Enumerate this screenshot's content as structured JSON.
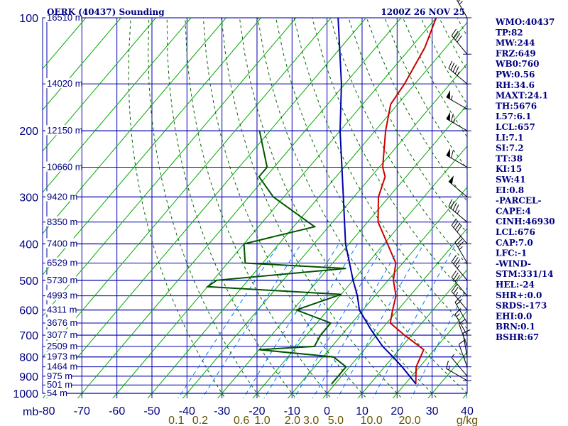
{
  "header": {
    "station": "OERK (40437) Sounding",
    "time": "1200Z 26 NOV 25"
  },
  "axes": {
    "pressure_unit": "mb",
    "mixing_ratio_unit": "g/kg",
    "pressure_levels": [
      100,
      200,
      300,
      400,
      500,
      600,
      700,
      800,
      900,
      1000
    ],
    "pressure_labels": [
      "100",
      "200",
      "300",
      "400",
      "500",
      "600",
      "700",
      "800",
      "900",
      "1000"
    ],
    "temp_ticks": [
      -80,
      -70,
      -60,
      -50,
      -40,
      -30,
      -20,
      -10,
      0,
      10,
      20,
      30,
      40
    ],
    "temp_labels": [
      "-80",
      "-70",
      "-60",
      "-50",
      "-40",
      "-30",
      "-20",
      "-10",
      "0",
      "10",
      "20",
      "30",
      "40"
    ],
    "mixing_ratio_ticks": [
      0.1,
      0.2,
      0.6,
      1.0,
      2.0,
      3.0,
      5.0,
      10.0,
      20.0
    ],
    "mixing_ratio_labels": [
      "0.1",
      "0.2",
      "0.6",
      "1.0",
      "2.0",
      "3.0",
      "5.0",
      "10.0",
      "20.0"
    ],
    "heights": [
      {
        "p": 100,
        "label": "16510 m"
      },
      {
        "p": 150,
        "label": "14020 m"
      },
      {
        "p": 200,
        "label": "12150 m"
      },
      {
        "p": 250,
        "label": "10660 m"
      },
      {
        "p": 300,
        "label": "9420 m"
      },
      {
        "p": 350,
        "label": "8350 m"
      },
      {
        "p": 400,
        "label": "7400 m"
      },
      {
        "p": 450,
        "label": "6529 m"
      },
      {
        "p": 500,
        "label": "5730 m"
      },
      {
        "p": 550,
        "label": "4993 m"
      },
      {
        "p": 600,
        "label": "4311 m"
      },
      {
        "p": 650,
        "label": "3676 m"
      },
      {
        "p": 700,
        "label": "3077 m"
      },
      {
        "p": 750,
        "label": "2509 m"
      },
      {
        "p": 800,
        "label": "1973 m"
      },
      {
        "p": 850,
        "label": "1464 m"
      },
      {
        "p": 900,
        "label": "975 m"
      },
      {
        "p": 950,
        "label": "501 m"
      },
      {
        "p": 1000,
        "label": "54 m"
      }
    ]
  },
  "indices": [
    "WMO:40437",
    "TP:82",
    "MW:244",
    "FRZ:649",
    "WB0:760",
    "PW:0.56",
    "RH:34.6",
    "MAXT:24.1",
    "TH:5676",
    "L57:6.1",
    "LCL:657",
    "LI:7.1",
    "SI:7.2",
    "TT:38",
    "KI:15",
    "SW:41",
    "EI:0.8",
    "-PARCEL-",
    "CAPE:4",
    "CINH:46930",
    "LCL:676",
    "CAP:7.0",
    "LFC:-1",
    "-WIND-",
    "STM:331/14",
    "HEL:-24",
    "SHR+:0.0",
    "SRDS:-173",
    "EHI:0.0",
    "BRN:0.1",
    "BSHR:67"
  ],
  "chart_data": {
    "type": "line",
    "title": "OERK (40437) Sounding",
    "subtitle": "1200Z 26 NOV 25",
    "xlabel": "",
    "ylabel": "mb",
    "plot": "skew-T log-P",
    "xlim": [
      -80,
      40
    ],
    "ylim": [
      1000,
      100
    ],
    "y_scale": "log",
    "grid": true,
    "colors": {
      "temperature": "#cc0000",
      "dewpoint": "#005500",
      "parcel": "#0000aa",
      "isotherm": "#00aa00",
      "dry_adiabat": "#006600",
      "mixing_ratio": "#0077ff",
      "isobar": "#0000aa"
    },
    "series": [
      {
        "key": "temperature",
        "points": [
          {
            "p": 943,
            "t": 23.0
          },
          {
            "p": 850,
            "t": 19.0
          },
          {
            "p": 765,
            "t": 17.0
          },
          {
            "p": 700,
            "t": 8.0
          },
          {
            "p": 650,
            "t": 1.0
          },
          {
            "p": 600,
            "t": -1.5
          },
          {
            "p": 550,
            "t": -4.0
          },
          {
            "p": 500,
            "t": -8.5
          },
          {
            "p": 450,
            "t": -12.0
          },
          {
            "p": 400,
            "t": -19.0
          },
          {
            "p": 350,
            "t": -27.0
          },
          {
            "p": 300,
            "t": -33.0
          },
          {
            "p": 265,
            "t": -36.0
          },
          {
            "p": 250,
            "t": -39.0
          },
          {
            "p": 200,
            "t": -47.0
          },
          {
            "p": 170,
            "t": -52.0
          },
          {
            "p": 150,
            "t": -53.0
          },
          {
            "p": 120,
            "t": -56.0
          },
          {
            "p": 100,
            "t": -60.0
          }
        ]
      },
      {
        "key": "dewpoint",
        "points": [
          {
            "p": 943,
            "t": -1.0
          },
          {
            "p": 900,
            "t": -1.0
          },
          {
            "p": 850,
            "t": -1.0
          },
          {
            "p": 800,
            "t": -7.0
          },
          {
            "p": 765,
            "t": -30.0
          },
          {
            "p": 750,
            "t": -15.0
          },
          {
            "p": 700,
            "t": -16.0
          },
          {
            "p": 650,
            "t": -16.0
          },
          {
            "p": 600,
            "t": -29.0
          },
          {
            "p": 545,
            "t": -20.0
          },
          {
            "p": 520,
            "t": -60.0
          },
          {
            "p": 500,
            "t": -59.0
          },
          {
            "p": 465,
            "t": -25.0
          },
          {
            "p": 450,
            "t": -55.0
          },
          {
            "p": 400,
            "t": -60.0
          },
          {
            "p": 360,
            "t": -44.0
          },
          {
            "p": 300,
            "t": -63.0
          },
          {
            "p": 265,
            "t": -72.0
          },
          {
            "p": 250,
            "t": -72.0
          },
          {
            "p": 200,
            "t": -83.0
          }
        ]
      },
      {
        "key": "parcel",
        "points": [
          {
            "p": 943,
            "t": 23.0
          },
          {
            "p": 850,
            "t": 15.0
          },
          {
            "p": 800,
            "t": 10.0
          },
          {
            "p": 750,
            "t": 4.5
          },
          {
            "p": 676,
            "t": -3.0
          },
          {
            "p": 600,
            "t": -11.0
          },
          {
            "p": 550,
            "t": -15.0
          },
          {
            "p": 500,
            "t": -20.0
          },
          {
            "p": 400,
            "t": -31.0
          },
          {
            "p": 300,
            "t": -43.0
          },
          {
            "p": 200,
            "t": -60.0
          },
          {
            "p": 150,
            "t": -71.0
          },
          {
            "p": 100,
            "t": -88.0
          }
        ]
      }
    ],
    "wind_barbs": [
      {
        "p": 925,
        "dir": 300,
        "spd": 15
      },
      {
        "p": 900,
        "dir": 320,
        "spd": 5
      },
      {
        "p": 850,
        "dir": 340,
        "spd": 10
      },
      {
        "p": 800,
        "dir": 350,
        "spd": 10
      },
      {
        "p": 750,
        "dir": 340,
        "spd": 10
      },
      {
        "p": 700,
        "dir": 330,
        "spd": 15
      },
      {
        "p": 650,
        "dir": 330,
        "spd": 20
      },
      {
        "p": 600,
        "dir": 320,
        "spd": 25
      },
      {
        "p": 550,
        "dir": 320,
        "spd": 30
      },
      {
        "p": 500,
        "dir": 320,
        "spd": 35
      },
      {
        "p": 450,
        "dir": 330,
        "spd": 35
      },
      {
        "p": 400,
        "dir": 320,
        "spd": 40
      },
      {
        "p": 350,
        "dir": 310,
        "spd": 45
      },
      {
        "p": 300,
        "dir": 310,
        "spd": 50
      },
      {
        "p": 250,
        "dir": 300,
        "spd": 60
      },
      {
        "p": 200,
        "dir": 300,
        "spd": 65
      },
      {
        "p": 175,
        "dir": 300,
        "spd": 55
      },
      {
        "p": 150,
        "dir": 310,
        "spd": 45
      },
      {
        "p": 125,
        "dir": 320,
        "spd": 40
      },
      {
        "p": 100,
        "dir": 330,
        "spd": 35
      }
    ]
  }
}
